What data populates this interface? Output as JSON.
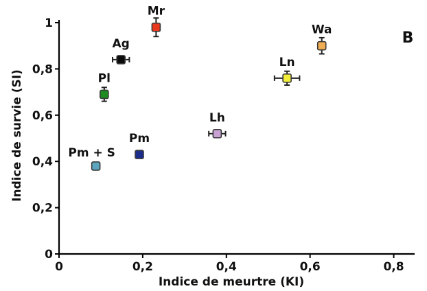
{
  "chart_data": {
    "type": "scatter",
    "panel_label": "B",
    "xlabel": "Indice de meurtre (KI)",
    "ylabel": "Indice de survie (SI)",
    "xlim": [
      0,
      0.85
    ],
    "ylim": [
      0,
      1.0
    ],
    "xticks": [
      {
        "value": 0,
        "label": "0"
      },
      {
        "value": 0.2,
        "label": "0,2"
      },
      {
        "value": 0.4,
        "label": "0,4"
      },
      {
        "value": 0.6,
        "label": "0,6"
      },
      {
        "value": 0.8,
        "label": "0,8"
      }
    ],
    "yticks": [
      {
        "value": 0,
        "label": "0"
      },
      {
        "value": 0.2,
        "label": "0,2"
      },
      {
        "value": 0.4,
        "label": "0,4"
      },
      {
        "value": 0.6,
        "label": "0,6"
      },
      {
        "value": 0.8,
        "label": "0,8"
      },
      {
        "value": 1.0,
        "label": "1"
      }
    ],
    "points": [
      {
        "label": "Mr",
        "x": 0.232,
        "y": 0.98,
        "xerr": 0.0,
        "yerr": 0.04,
        "color": "#e8381e",
        "label_pos": "top"
      },
      {
        "label": "Ag",
        "x": 0.148,
        "y": 0.84,
        "xerr": 0.02,
        "yerr": 0.0,
        "color": "#0a0a0a",
        "label_pos": "top"
      },
      {
        "label": "Pl",
        "x": 0.108,
        "y": 0.69,
        "xerr": 0.0,
        "yerr": 0.03,
        "color": "#1f8c22",
        "label_pos": "top"
      },
      {
        "label": "Pm",
        "x": 0.192,
        "y": 0.43,
        "xerr": 0.0,
        "yerr": 0.0,
        "color": "#1b2e8c",
        "label_pos": "top"
      },
      {
        "label": "Pm + S",
        "x": 0.088,
        "y": 0.38,
        "xerr": 0.0,
        "yerr": 0.0,
        "color": "#5ba6be",
        "label_pos": "top-left"
      },
      {
        "label": "Lh",
        "x": 0.378,
        "y": 0.52,
        "xerr": 0.02,
        "yerr": 0.015,
        "color": "#c8a2d2",
        "label_pos": "top"
      },
      {
        "label": "Ln",
        "x": 0.545,
        "y": 0.76,
        "xerr": 0.03,
        "yerr": 0.03,
        "color": "#f3ee3a",
        "label_pos": "top"
      },
      {
        "label": "Wa",
        "x": 0.628,
        "y": 0.9,
        "xerr": 0.0,
        "yerr": 0.035,
        "color": "#f0ad52",
        "label_pos": "top"
      }
    ]
  }
}
